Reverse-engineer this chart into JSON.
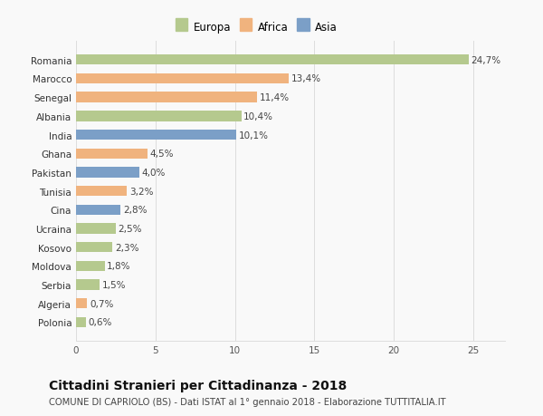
{
  "countries": [
    "Romania",
    "Marocco",
    "Senegal",
    "Albania",
    "India",
    "Ghana",
    "Pakistan",
    "Tunisia",
    "Cina",
    "Ucraina",
    "Kosovo",
    "Moldova",
    "Serbia",
    "Algeria",
    "Polonia"
  ],
  "values": [
    24.7,
    13.4,
    11.4,
    10.4,
    10.1,
    4.5,
    4.0,
    3.2,
    2.8,
    2.5,
    2.3,
    1.8,
    1.5,
    0.7,
    0.6
  ],
  "labels": [
    "24,7%",
    "13,4%",
    "11,4%",
    "10,4%",
    "10,1%",
    "4,5%",
    "4,0%",
    "3,2%",
    "2,8%",
    "2,5%",
    "2,3%",
    "1,8%",
    "1,5%",
    "0,7%",
    "0,6%"
  ],
  "continents": [
    "Europa",
    "Africa",
    "Africa",
    "Europa",
    "Asia",
    "Africa",
    "Asia",
    "Africa",
    "Asia",
    "Europa",
    "Europa",
    "Europa",
    "Europa",
    "Africa",
    "Europa"
  ],
  "colors": {
    "Europa": "#b5c98e",
    "Africa": "#f0b37e",
    "Asia": "#7b9fc7"
  },
  "xlim": [
    0,
    27
  ],
  "xticks": [
    0,
    5,
    10,
    15,
    20,
    25
  ],
  "title": "Cittadini Stranieri per Cittadinanza - 2018",
  "subtitle": "COMUNE DI CAPRIOLO (BS) - Dati ISTAT al 1° gennaio 2018 - Elaborazione TUTTITALIA.IT",
  "bg_color": "#f9f9f9",
  "grid_color": "#dddddd",
  "bar_height": 0.55,
  "label_fontsize": 7.5,
  "ytick_fontsize": 7.5,
  "xtick_fontsize": 7.5,
  "legend_fontsize": 8.5,
  "title_fontsize": 10,
  "subtitle_fontsize": 7.2
}
